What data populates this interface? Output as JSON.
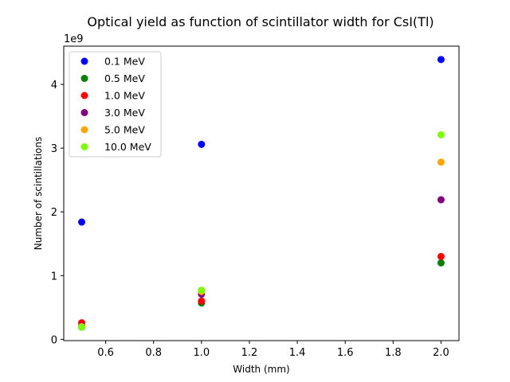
{
  "chart_data": {
    "type": "scatter",
    "title": "Optical yield as function of scintillator width for CsI(Tl)",
    "xlabel": "Width (mm)",
    "ylabel": "Number of scintillations",
    "y_scale_label": "1e9",
    "xlim": [
      0.425,
      2.075
    ],
    "ylim": [
      -0.02,
      4.6
    ],
    "x_ticks": [
      0.6,
      0.8,
      1.0,
      1.2,
      1.4,
      1.6,
      1.8,
      2.0
    ],
    "x_tick_labels": [
      "0.6",
      "0.8",
      "1.0",
      "1.2",
      "1.4",
      "1.6",
      "1.8",
      "2.0"
    ],
    "y_ticks": [
      0,
      1,
      2,
      3,
      4
    ],
    "y_tick_labels": [
      "0",
      "1",
      "2",
      "3",
      "4"
    ],
    "legend_position": "top-left",
    "grid": false,
    "x": [
      0.5,
      1.0,
      2.0
    ],
    "series": [
      {
        "name": "0.1 MeV",
        "color": "#0000ff",
        "values": [
          1.84,
          3.06,
          4.39
        ]
      },
      {
        "name": "0.5 MeV",
        "color": "#008000",
        "values": [
          0.19,
          0.57,
          1.2
        ]
      },
      {
        "name": "1.0 MeV",
        "color": "#ff0000",
        "values": [
          0.26,
          0.6,
          1.3
        ]
      },
      {
        "name": "3.0 MeV",
        "color": "#800080",
        "values": [
          0.21,
          0.71,
          2.19
        ]
      },
      {
        "name": "5.0 MeV",
        "color": "#ffa500",
        "values": [
          0.2,
          0.75,
          2.78
        ]
      },
      {
        "name": "10.0 MeV",
        "color": "#7cfc00",
        "values": [
          0.19,
          0.77,
          3.21
        ]
      }
    ]
  }
}
